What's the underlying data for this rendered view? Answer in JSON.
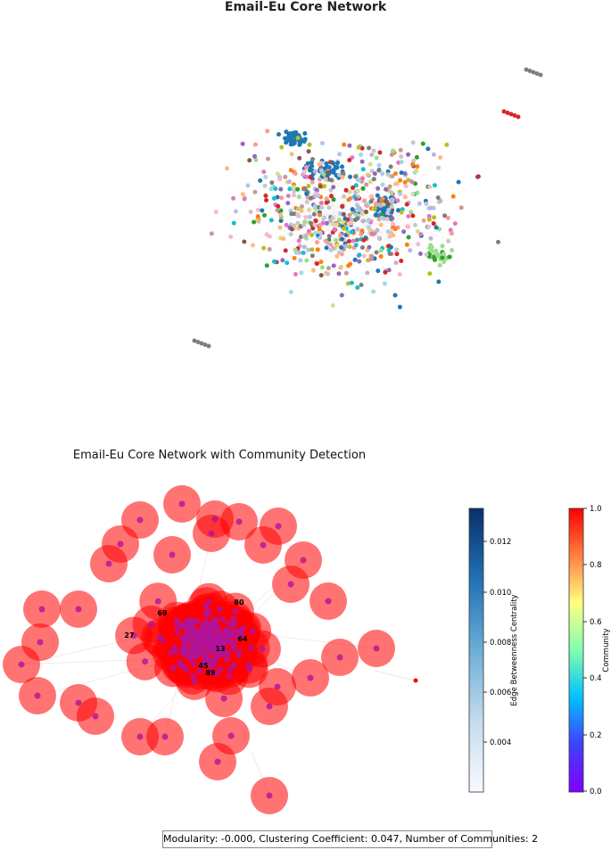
{
  "figure1": {
    "title": "Email-Eu Core Network"
  },
  "figure2": {
    "title": "Email-Eu Core Network with Community Detection",
    "hub_labels": [
      "80",
      "69",
      "27",
      "64",
      "13",
      "45",
      "89"
    ],
    "colorbar_edge": {
      "label": "Edge Betweenness Centrality",
      "ticks": [
        "0.012",
        "0.010",
        "0.008",
        "0.006",
        "0.004"
      ],
      "colors": [
        "#08306b",
        "#2171b5",
        "#6baed6",
        "#c6dbef",
        "#f7fbff"
      ]
    },
    "colorbar_community": {
      "label": "Community",
      "ticks": [
        "1.0",
        "0.8",
        "0.6",
        "0.4",
        "0.2",
        "0.0"
      ],
      "colors": [
        "#ff0000",
        "#ff8040",
        "#ffff80",
        "#80ffb0",
        "#00c0ff",
        "#4040ff",
        "#8000ff"
      ]
    },
    "stats_text": "Modularity: -0.000, Clustering Coefficient: 0.047, Number of Communities: 2",
    "node_fill": "#ff0000",
    "node_center": "#b0149a"
  },
  "palette": [
    "#1f77b4",
    "#ff7f0e",
    "#2ca02c",
    "#d62728",
    "#9467bd",
    "#8c564b",
    "#e377c2",
    "#7f7f7f",
    "#bcbd22",
    "#17becf",
    "#aec7e8",
    "#ffbb78",
    "#98df8a",
    "#ff9896",
    "#c5b0d5",
    "#c49c94",
    "#f7b6d2",
    "#c7c7c7",
    "#dbdb8d",
    "#9edae5"
  ]
}
